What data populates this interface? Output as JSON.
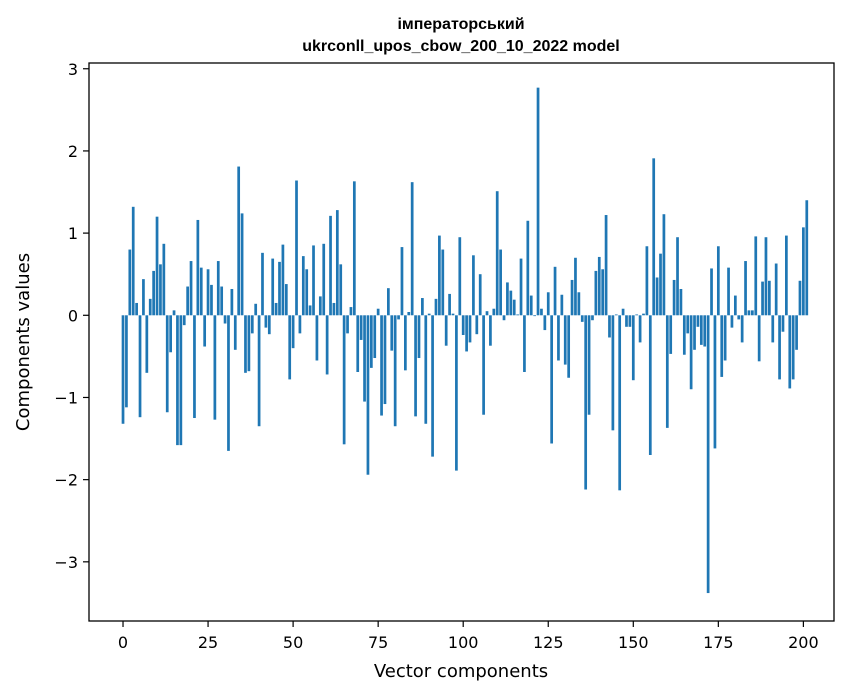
{
  "chart_data": {
    "type": "bar",
    "title_line1": "імператорський",
    "title_line2": "ukrconll_upos_cbow_200_10_2022 model",
    "xlabel": "Vector components",
    "ylabel": "Components values",
    "xlim": [
      -10,
      209
    ],
    "ylim": [
      -3.72,
      3.07
    ],
    "x_ticks": [
      0,
      25,
      50,
      75,
      100,
      125,
      150,
      175,
      200
    ],
    "y_ticks": [
      -3,
      -2,
      -1,
      0,
      1,
      2,
      3
    ],
    "x_tick_labels": [
      "0",
      "25",
      "50",
      "75",
      "100",
      "125",
      "150",
      "175",
      "200"
    ],
    "y_tick_labels": [
      "−3",
      "−2",
      "−1",
      "0",
      "1",
      "2",
      "3"
    ],
    "bar_color": "#1f77b4",
    "values": [
      -1.32,
      -1.12,
      0.8,
      1.32,
      0.15,
      -1.24,
      0.44,
      -0.7,
      0.2,
      0.54,
      1.2,
      0.62,
      0.87,
      -1.18,
      -0.45,
      0.06,
      -1.58,
      -1.58,
      -0.12,
      0.35,
      0.66,
      -1.25,
      1.16,
      0.58,
      -0.38,
      0.56,
      0.37,
      -1.27,
      0.66,
      0.35,
      -0.1,
      -1.65,
      0.32,
      -0.42,
      1.81,
      1.24,
      -0.7,
      -0.68,
      -0.22,
      0.14,
      -1.35,
      0.76,
      -0.15,
      -0.23,
      0.69,
      0.15,
      0.65,
      0.86,
      0.38,
      -0.78,
      -0.4,
      1.64,
      -0.22,
      0.72,
      0.56,
      0.12,
      0.85,
      -0.55,
      0.23,
      0.87,
      -0.72,
      1.21,
      0.15,
      1.28,
      0.62,
      -1.57,
      -0.22,
      0.1,
      1.63,
      -0.69,
      -0.3,
      -1.05,
      -1.94,
      -0.64,
      -0.52,
      0.08,
      -1.22,
      -1.08,
      0.33,
      -0.43,
      -1.35,
      -0.05,
      0.83,
      -0.67,
      0.04,
      1.62,
      -1.23,
      -0.52,
      0.21,
      -1.32,
      0.02,
      -1.72,
      0.2,
      0.97,
      0.8,
      -0.37,
      0.26,
      0.02,
      -1.89,
      0.95,
      -0.24,
      -0.44,
      -0.33,
      0.73,
      -0.23,
      0.5,
      -1.21,
      0.05,
      -0.37,
      0.08,
      1.51,
      0.8,
      -0.06,
      0.4,
      0.3,
      0.19,
      0.01,
      0.69,
      -0.69,
      1.15,
      0.24,
      -0.01,
      2.77,
      0.08,
      -0.18,
      0.28,
      -1.56,
      0.59,
      -0.55,
      0.25,
      -0.6,
      -0.76,
      0.43,
      0.7,
      0.28,
      -0.08,
      -2.12,
      -1.21,
      -0.06,
      0.54,
      0.71,
      0.56,
      1.22,
      -0.27,
      -1.4,
      0.01,
      -2.13,
      0.08,
      -0.14,
      -0.14,
      -0.79,
      0.01,
      -0.33,
      0.02,
      0.84,
      -1.7,
      1.91,
      0.46,
      0.75,
      1.23,
      -1.37,
      -0.47,
      0.43,
      0.95,
      0.32,
      -0.48,
      -0.22,
      -0.9,
      -0.42,
      -0.14,
      -0.36,
      -0.38,
      -3.38,
      0.57,
      -1.62,
      0.84,
      -0.75,
      -0.55,
      0.58,
      -0.15,
      0.24,
      -0.05,
      -0.33,
      0.66,
      0.06,
      0.06,
      0.96,
      -0.56,
      0.41,
      0.95,
      0.42,
      -0.33,
      0.63,
      -0.78,
      -0.2,
      0.97,
      -0.89,
      -0.78,
      -0.42,
      0.42,
      1.07,
      1.4
    ]
  }
}
